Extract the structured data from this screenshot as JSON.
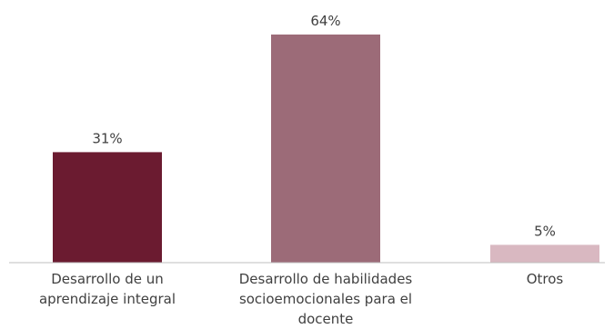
{
  "chart_data": {
    "type": "bar",
    "title": "",
    "xlabel": "",
    "ylabel": "",
    "ylim": [
      0,
      64
    ],
    "grid": false,
    "legend": "none",
    "categories": [
      [
        "Desarrollo de un",
        "aprendizaje integral"
      ],
      [
        "Desarrollo de habilidades",
        "socioemocionales para el",
        "docente"
      ],
      [
        "Otros"
      ]
    ],
    "values": [
      31,
      64,
      5
    ],
    "data_labels": [
      "31%",
      "64%",
      "5%"
    ],
    "colors": [
      "#6b1b30",
      "#9c6b78",
      "#d9b8c1"
    ],
    "axis_color": "#bfbfbf",
    "label_color": "#404040"
  }
}
